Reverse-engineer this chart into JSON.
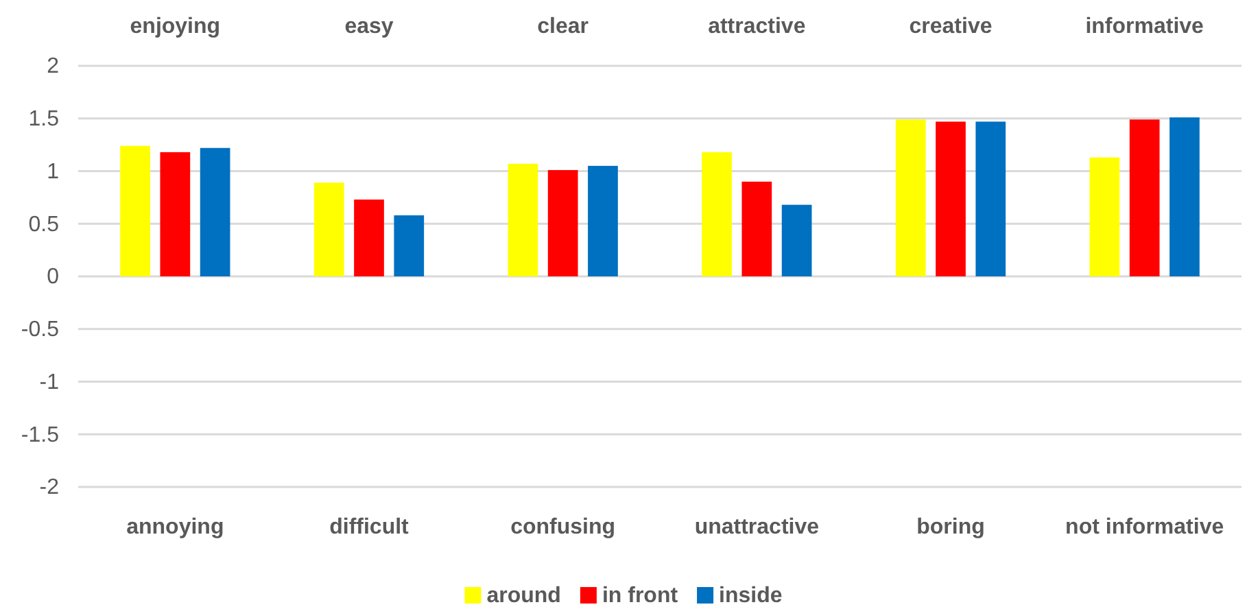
{
  "chart_data": {
    "type": "bar",
    "categories": [
      "annoying",
      "difficult",
      "confusing",
      "unattractive",
      "boring",
      "not informative"
    ],
    "annotations": [
      "enjoying",
      "easy",
      "clear",
      "attractive",
      "creative",
      "informative"
    ],
    "series": [
      {
        "name": "around",
        "color": "#ffff00",
        "values": [
          1.24,
          0.89,
          1.07,
          1.18,
          1.49,
          1.13
        ]
      },
      {
        "name": "in front",
        "color": "#ff0000",
        "values": [
          1.18,
          0.73,
          1.01,
          0.9,
          1.47,
          1.49
        ]
      },
      {
        "name": "inside",
        "color": "#0070c0",
        "values": [
          1.22,
          0.58,
          1.05,
          0.68,
          1.47,
          1.51
        ]
      }
    ],
    "ylim": [
      -2,
      2
    ],
    "yticks": [
      -2,
      -1.5,
      -1,
      -0.5,
      0,
      0.5,
      1,
      1.5,
      2
    ],
    "grid": "y",
    "legend": "bottom"
  }
}
